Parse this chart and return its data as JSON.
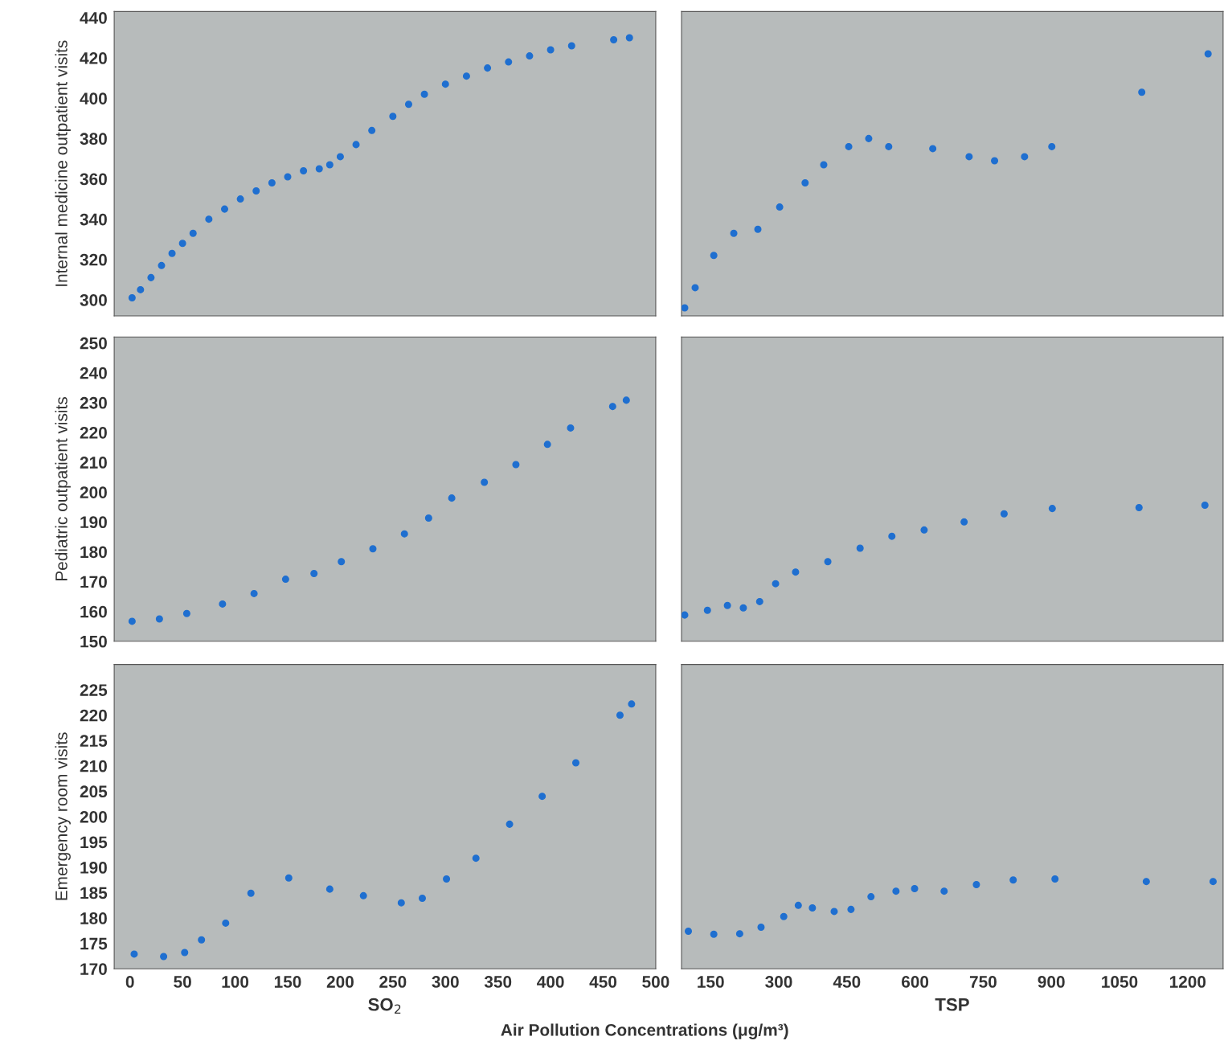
{
  "chart_data": [
    {
      "type": "scatter",
      "ylabel": "Internal medicine outpatient visits",
      "tick_labels": "y",
      "marker": "circle",
      "xlim": [
        -15,
        500
      ],
      "xticks": [
        0,
        50,
        100,
        150,
        200,
        250,
        300,
        350,
        400,
        450,
        500
      ],
      "ylim": [
        292,
        443
      ],
      "yticks": [
        300,
        320,
        340,
        360,
        380,
        400,
        420,
        440
      ],
      "series": [
        {
          "color": "#1f6fd0",
          "x": [
            2,
            10,
            20,
            30,
            40,
            50,
            60,
            75,
            90,
            105,
            120,
            135,
            150,
            165,
            180,
            190,
            200,
            215,
            230,
            250,
            265,
            280,
            300,
            320,
            340,
            360,
            380,
            400,
            420,
            460,
            475
          ],
          "values": [
            301,
            305,
            311,
            317,
            323,
            328,
            333,
            340,
            345,
            350,
            354,
            358,
            361,
            364,
            365,
            367,
            371,
            377,
            384,
            391,
            397,
            402,
            407,
            411,
            415,
            418,
            421,
            424,
            426,
            429,
            430
          ]
        }
      ]
    },
    {
      "type": "scatter",
      "tick_labels": false,
      "marker": "circle",
      "xlim": [
        86,
        1278
      ],
      "xticks": [
        150,
        300,
        450,
        600,
        750,
        900,
        1050,
        1200
      ],
      "ylim": [
        292,
        443
      ],
      "yticks": [
        300,
        320,
        340,
        360,
        380,
        400,
        420,
        440
      ],
      "series": [
        {
          "color": "#1f6fd0",
          "x": [
            93,
            116,
            157,
            201,
            254,
            302,
            358,
            399,
            454,
            498,
            542,
            639,
            719,
            775,
            841,
            901,
            1099,
            1245
          ],
          "values": [
            296,
            306,
            322,
            333,
            335,
            346,
            358,
            367,
            376,
            380,
            376,
            375,
            371,
            369,
            371,
            376,
            403,
            422
          ]
        }
      ]
    },
    {
      "type": "scatter",
      "ylabel": "Pediatric outpatient visits",
      "tick_labels": "y",
      "marker": "circle",
      "xlim": [
        -15,
        500
      ],
      "xticks": [
        0,
        50,
        100,
        150,
        200,
        250,
        300,
        350,
        400,
        450,
        500
      ],
      "ylim": [
        150,
        252
      ],
      "yticks": [
        150,
        160,
        170,
        180,
        190,
        200,
        210,
        220,
        230,
        240,
        250
      ],
      "series": [
        {
          "color": "#1f6fd0",
          "x": [
            2,
            28,
            54,
            88,
            118,
            148,
            175,
            201,
            231,
            261,
            284,
            306,
            337,
            367,
            397,
            419,
            459,
            472
          ],
          "values": [
            156.7,
            157.5,
            159.3,
            162.5,
            166,
            170.8,
            172.7,
            176.7,
            181,
            186,
            191.3,
            198,
            203.3,
            209.2,
            216,
            221.5,
            228.7,
            230.8
          ]
        }
      ]
    },
    {
      "type": "scatter",
      "tick_labels": false,
      "marker": "circle",
      "xlim": [
        86,
        1278
      ],
      "xticks": [
        150,
        300,
        450,
        600,
        750,
        900,
        1050,
        1200
      ],
      "ylim": [
        150,
        252
      ],
      "yticks": [
        150,
        160,
        170,
        180,
        190,
        200,
        210,
        220,
        230,
        240,
        250
      ],
      "series": [
        {
          "color": "#1f6fd0",
          "x": [
            93,
            143,
            187,
            222,
            258,
            293,
            337,
            408,
            479,
            549,
            620,
            708,
            796,
            902,
            1093,
            1238
          ],
          "values": [
            158.8,
            160.4,
            162,
            161.2,
            163.3,
            169.3,
            173.2,
            176.7,
            181.2,
            185.2,
            187.3,
            190,
            192.7,
            194.5,
            194.8,
            195.6
          ]
        }
      ]
    },
    {
      "type": "scatter",
      "ylabel": "Emergency room visits",
      "xlabel": "SO$_{2}$",
      "marker": "circle",
      "xlim": [
        -15,
        500
      ],
      "xticks": [
        0,
        50,
        100,
        150,
        200,
        250,
        300,
        350,
        400,
        450,
        500
      ],
      "ylim": [
        170,
        230
      ],
      "yticks": [
        170,
        175,
        180,
        185,
        190,
        195,
        200,
        205,
        210,
        215,
        220,
        225
      ],
      "annotations": [
        "Air Pollution Concentrations (μg/m³)"
      ],
      "series": [
        {
          "color": "#1f6fd0",
          "x": [
            4,
            32,
            52,
            68,
            91,
            115,
            151,
            190,
            222,
            258,
            278,
            301,
            329,
            361,
            392,
            424,
            466,
            477
          ],
          "values": [
            172.9,
            172.4,
            173.2,
            175.7,
            179,
            184.9,
            187.9,
            185.7,
            184.4,
            183,
            183.9,
            187.7,
            191.8,
            198.5,
            204,
            210.6,
            220,
            222.2
          ]
        }
      ]
    },
    {
      "type": "scatter",
      "xlabel": "TSP",
      "tick_labels": "x",
      "marker": "circle",
      "xlim": [
        86,
        1278
      ],
      "xticks": [
        150,
        300,
        450,
        600,
        750,
        900,
        1050,
        1200
      ],
      "ylim": [
        170,
        230
      ],
      "yticks": [
        170,
        175,
        180,
        185,
        190,
        195,
        200,
        205,
        210,
        215,
        220,
        225
      ],
      "series": [
        {
          "color": "#1f6fd0",
          "x": [
            101,
            157,
            214,
            261,
            311,
            343,
            374,
            422,
            459,
            503,
            558,
            599,
            664,
            735,
            816,
            908,
            1109,
            1256
          ],
          "values": [
            177.4,
            176.8,
            176.9,
            178.2,
            180.3,
            182.5,
            182,
            181.3,
            181.7,
            184.2,
            185.3,
            185.8,
            185.3,
            186.6,
            187.5,
            187.7,
            187.2,
            187.2
          ]
        }
      ]
    }
  ]
}
